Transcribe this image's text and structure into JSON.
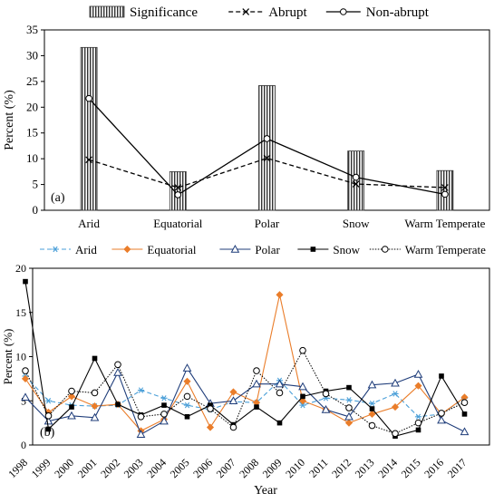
{
  "chart_data": [
    {
      "type": "bar",
      "panel_label": "(a)",
      "title": "",
      "xlabel": "",
      "ylabel": "Percent  (%)",
      "ylim": [
        0,
        35
      ],
      "yticks": [
        0,
        5,
        10,
        15,
        20,
        25,
        30,
        35
      ],
      "categories": [
        "Arid",
        "Equatorial",
        "Polar",
        "Snow",
        "Warm Temperate"
      ],
      "legend_position": "top",
      "series": [
        {
          "name": "Significance",
          "type": "bar",
          "style": "hatched",
          "values": [
            31.6,
            7.5,
            24.2,
            11.5,
            7.7
          ]
        },
        {
          "name": "Abrupt",
          "type": "line",
          "style": "dashed-x",
          "values": [
            9.8,
            4.4,
            10.1,
            5.1,
            4.4
          ]
        },
        {
          "name": "Non-abrupt",
          "type": "line",
          "style": "solid-circle",
          "values": [
            21.7,
            3.0,
            13.9,
            6.4,
            3.1
          ]
        }
      ]
    },
    {
      "type": "line",
      "panel_label": "(b)",
      "title": "",
      "xlabel": "Year",
      "ylabel": "Percent (%)",
      "ylim": [
        0,
        20
      ],
      "yticks": [
        0,
        5,
        10,
        15,
        20
      ],
      "x": [
        "1998",
        "1999",
        "2000",
        "2001",
        "2002",
        "2003",
        "2004",
        "2005",
        "2006",
        "2007",
        "2008",
        "2009",
        "2010",
        "2011",
        "2012",
        "2013",
        "2014",
        "2015",
        "2016",
        "2017"
      ],
      "legend_position": "top",
      "series": [
        {
          "name": "Arid",
          "color": "#4a9fd8",
          "style": "dashed-asterisk",
          "values": [
            7.8,
            5.0,
            4.5,
            4.4,
            4.5,
            6.2,
            5.3,
            4.5,
            4.0,
            4.9,
            4.8,
            7.3,
            4.5,
            5.3,
            5.1,
            4.7,
            5.8,
            3.2,
            3.5,
            5.3
          ]
        },
        {
          "name": "Equatorial",
          "color": "#ea7d2a",
          "style": "solid-diamond",
          "values": [
            7.5,
            3.7,
            5.5,
            4.4,
            4.6,
            1.6,
            2.9,
            7.2,
            2.0,
            6.0,
            4.8,
            17.0,
            5.0,
            4.0,
            2.5,
            3.5,
            4.3,
            6.7,
            3.5,
            5.4
          ]
        },
        {
          "name": "Polar",
          "color": "#1f3d7a",
          "style": "solid-triangle",
          "values": [
            5.4,
            2.7,
            3.3,
            3.1,
            8.2,
            1.2,
            2.7,
            8.7,
            4.7,
            5.0,
            6.9,
            6.9,
            6.6,
            4.0,
            3.2,
            6.8,
            7.0,
            8.0,
            2.8,
            1.5
          ]
        },
        {
          "name": "Snow",
          "color": "#000000",
          "style": "solid-square",
          "values": [
            18.5,
            1.8,
            4.3,
            9.8,
            4.6,
            3.4,
            4.5,
            3.2,
            4.5,
            2.3,
            4.3,
            2.5,
            5.5,
            6.1,
            6.5,
            4.1,
            1.0,
            1.7,
            7.8,
            3.5
          ]
        },
        {
          "name": "Warm Temperate",
          "color": "#000000",
          "style": "dotted-circle",
          "values": [
            8.4,
            3.3,
            6.1,
            5.9,
            9.1,
            3.2,
            3.5,
            5.5,
            4.1,
            2.0,
            8.4,
            5.9,
            10.7,
            5.8,
            4.2,
            2.2,
            1.3,
            2.5,
            3.6,
            4.8
          ]
        }
      ]
    }
  ]
}
